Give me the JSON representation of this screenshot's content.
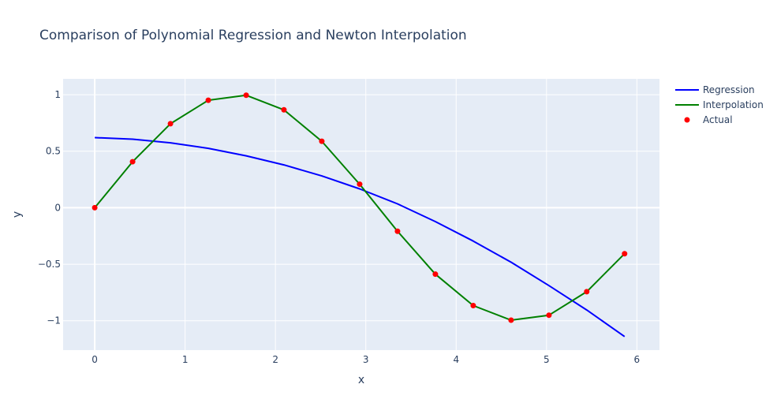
{
  "chart_data": {
    "type": "line",
    "title": "Comparison of Polynomial Regression and Newton Interpolation",
    "xlabel": "x",
    "ylabel": "y",
    "xlim": [
      -0.35,
      6.25
    ],
    "ylim": [
      -1.26,
      1.14
    ],
    "x_ticks": [
      0,
      1,
      2,
      3,
      4,
      5,
      6
    ],
    "y_ticks": [
      1,
      0.5,
      0,
      -0.5,
      -1
    ],
    "y_tick_labels": [
      "1",
      "0.5",
      "0",
      "−0.5",
      "−1"
    ],
    "x_tick_labels": [
      "0",
      "1",
      "2",
      "3",
      "4",
      "5",
      "6"
    ],
    "grid": true,
    "background": "#e5ecf6",
    "legend_position": "top-right",
    "series": [
      {
        "name": "Regression",
        "mode": "lines",
        "color": "#0000ff",
        "x": [
          0,
          0.419,
          0.838,
          1.257,
          1.676,
          2.094,
          2.513,
          2.932,
          3.351,
          3.77,
          4.189,
          4.608,
          5.027,
          5.445,
          5.864
        ],
        "y": [
          0.62,
          0.606,
          0.574,
          0.525,
          0.459,
          0.379,
          0.281,
          0.167,
          0.034,
          -0.123,
          -0.295,
          -0.482,
          -0.689,
          -0.905,
          -1.14
        ]
      },
      {
        "name": "Interpolation",
        "mode": "lines",
        "color": "#008000",
        "x": [
          0,
          0.419,
          0.838,
          1.257,
          1.676,
          2.094,
          2.513,
          2.932,
          3.351,
          3.77,
          4.189,
          4.608,
          5.027,
          5.445,
          5.864
        ],
        "y": [
          0,
          0.407,
          0.743,
          0.951,
          0.995,
          0.866,
          0.588,
          0.208,
          -0.208,
          -0.588,
          -0.866,
          -0.995,
          -0.951,
          -0.743,
          -0.407
        ]
      },
      {
        "name": "Actual",
        "mode": "markers",
        "color": "#ff0000",
        "x": [
          0,
          0.419,
          0.838,
          1.257,
          1.676,
          2.094,
          2.513,
          2.932,
          3.351,
          3.77,
          4.189,
          4.608,
          5.027,
          5.445,
          5.864
        ],
        "y": [
          0,
          0.407,
          0.743,
          0.951,
          0.995,
          0.866,
          0.588,
          0.208,
          -0.208,
          -0.588,
          -0.866,
          -0.995,
          -0.951,
          -0.743,
          -0.407
        ]
      }
    ]
  }
}
